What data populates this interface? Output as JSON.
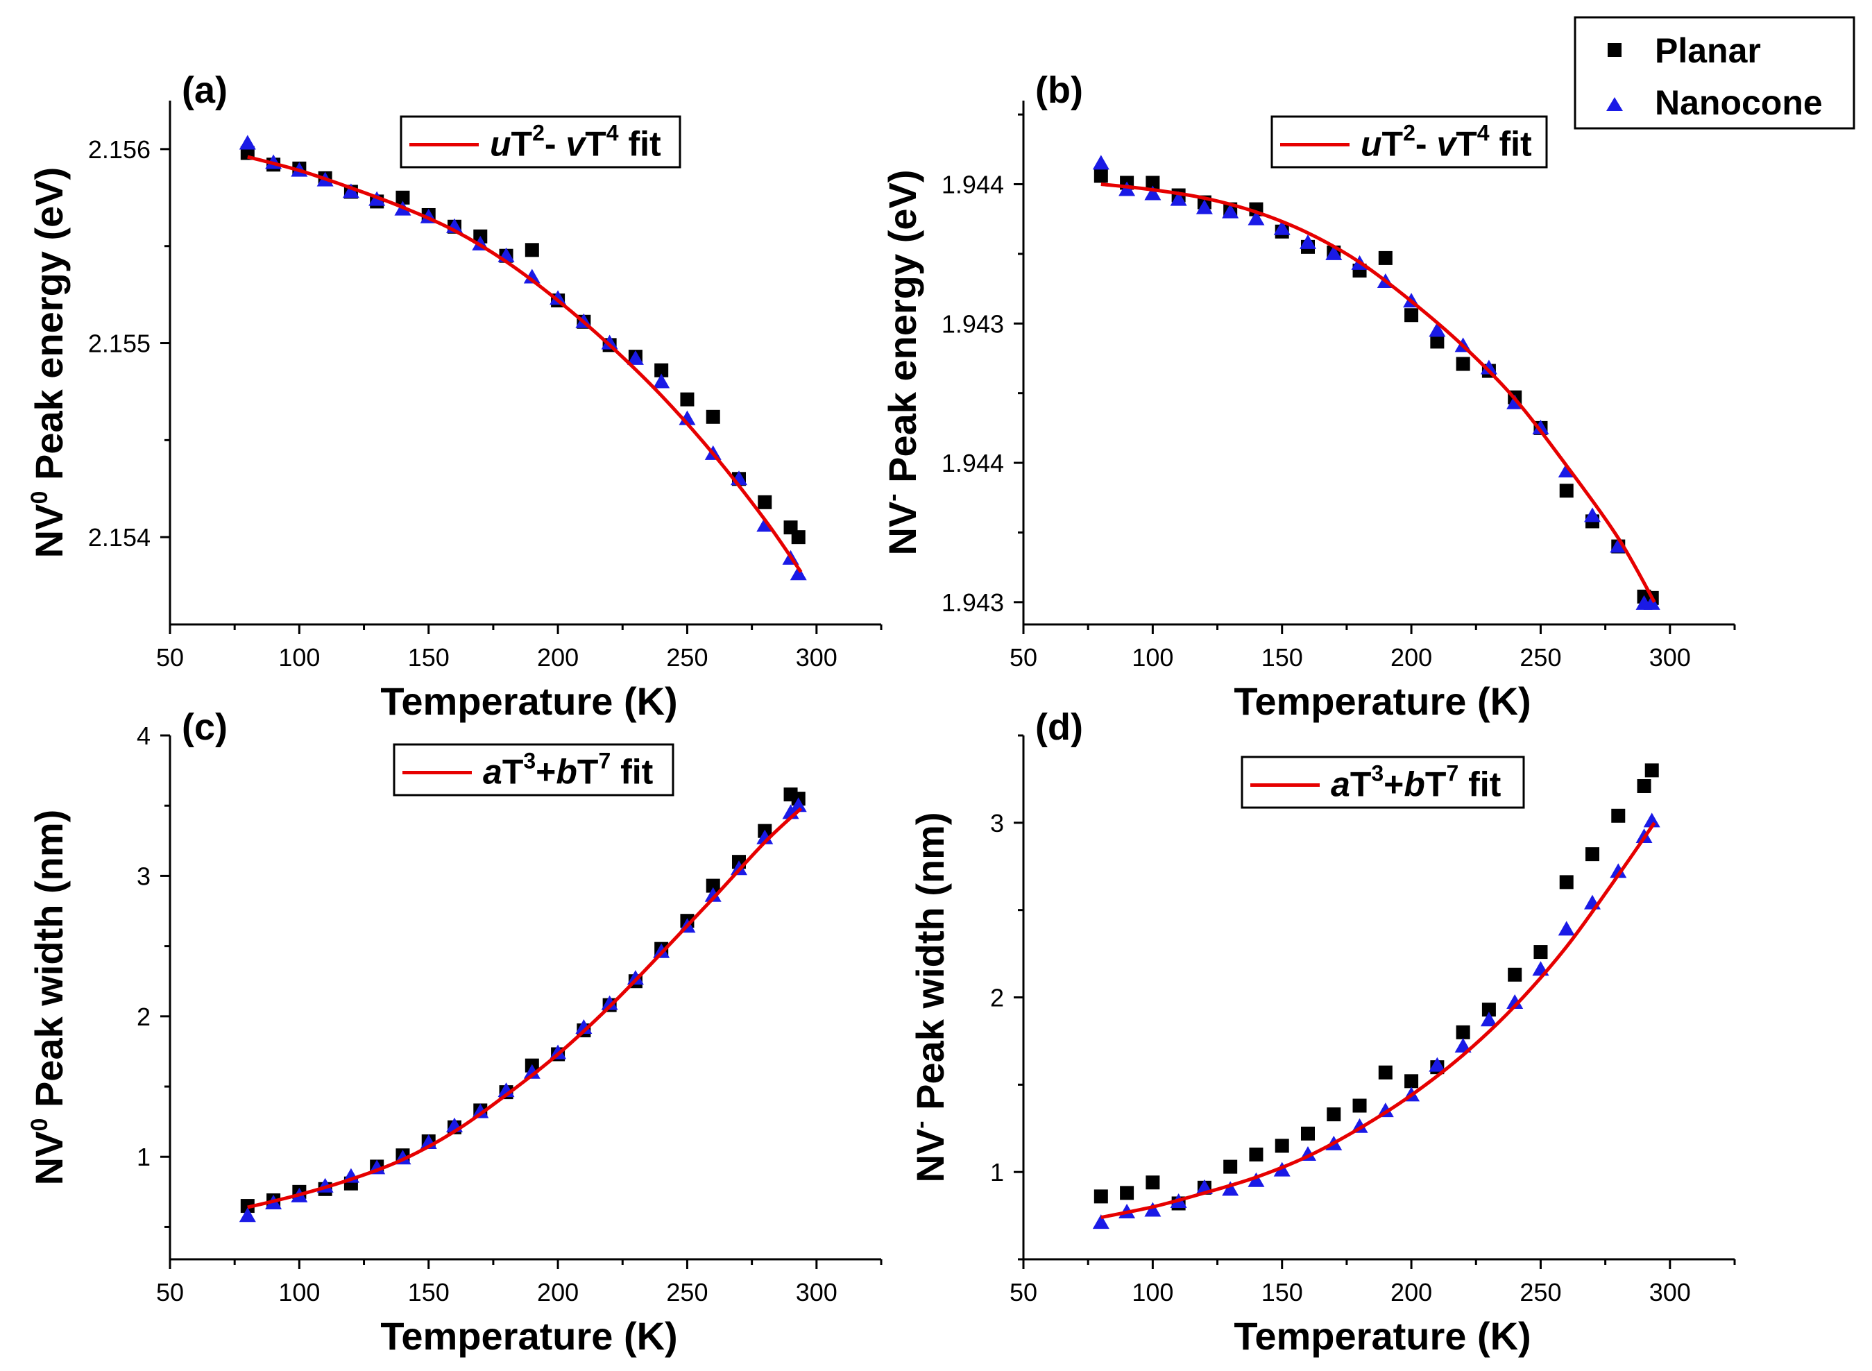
{
  "legend": {
    "planar_label": "Planar",
    "nanocone_label": "Nanocone",
    "planar_color": "#000000",
    "nanocone_color": "#1a1ae6"
  },
  "fit_color": "#e60000",
  "chart_data": [
    {
      "id": "a",
      "type": "scatter",
      "panel_label": "(a)",
      "xlabel": "Temperature (K)",
      "ylabel": "NV⁰ Peak energy (eV)",
      "ylabel_parts": {
        "base": "NV",
        "sup": "0",
        "rest": " Peak energy (eV)"
      },
      "xlim": [
        50,
        325
      ],
      "ylim": [
        2.15355,
        2.15625
      ],
      "xticks": [
        50,
        100,
        150,
        200,
        250,
        300
      ],
      "yticks": [
        2.154,
        2.155,
        2.156
      ],
      "ytick_labels": [
        "2.154",
        "2.155",
        "2.156"
      ],
      "fit_label": {
        "a": "u",
        "t1": "T",
        "s1": "2",
        "op": "- ",
        "b": "v",
        "t2": "T",
        "s2": "4",
        "tail": " fit"
      },
      "fit_label_text": "uT² - vT⁴ fit",
      "series": [
        {
          "name": "Planar",
          "x": [
            80,
            90,
            100,
            110,
            120,
            130,
            140,
            150,
            160,
            170,
            180,
            190,
            200,
            210,
            220,
            230,
            240,
            250,
            260,
            270,
            280,
            290,
            293
          ],
          "y": [
            2.15598,
            2.15592,
            2.1559,
            2.15585,
            2.15578,
            2.15573,
            2.15575,
            2.15566,
            2.1556,
            2.15555,
            2.15545,
            2.15548,
            2.15522,
            2.15511,
            2.15499,
            2.15493,
            2.15486,
            2.15471,
            2.15462,
            2.1543,
            2.15418,
            2.15405,
            2.154
          ]
        },
        {
          "name": "Nanocone",
          "x": [
            80,
            90,
            100,
            110,
            120,
            130,
            140,
            150,
            160,
            170,
            180,
            190,
            200,
            210,
            220,
            230,
            240,
            250,
            260,
            270,
            280,
            290,
            293
          ],
          "y": [
            2.15603,
            2.15593,
            2.15589,
            2.15584,
            2.15578,
            2.15574,
            2.15569,
            2.15565,
            2.1556,
            2.15551,
            2.15545,
            2.15534,
            2.15523,
            2.15511,
            2.155,
            2.15492,
            2.1548,
            2.15461,
            2.15443,
            2.1543,
            2.15406,
            2.15389,
            2.15381
          ]
        }
      ],
      "fit": {
        "x": [
          80,
          100,
          120,
          140,
          160,
          180,
          200,
          220,
          240,
          260,
          280,
          294
        ],
        "y": [
          2.15596,
          2.15589,
          2.1558,
          2.1557,
          2.15558,
          2.15542,
          2.15522,
          2.15499,
          2.15473,
          2.15443,
          2.15409,
          2.15382
        ]
      }
    },
    {
      "id": "b",
      "type": "scatter",
      "panel_label": "(b)",
      "xlabel": "Temperature (K)",
      "ylabel": "NV⁻ Peak energy (eV)",
      "ylabel_parts": {
        "base": "NV",
        "sup": "-",
        "rest": " Peak energy (eV)"
      },
      "xlim": [
        50,
        325
      ],
      "ylim": [
        -0.16,
        3.6
      ],
      "xticks": [
        50,
        100,
        150,
        200,
        250,
        300
      ],
      "yticks": [
        0,
        1,
        2,
        3
      ],
      "ytick_labels": [
        "1.943",
        "1.944",
        "1.943",
        "1.944"
      ],
      "fit_label": {
        "a": "u",
        "t1": "T",
        "s1": "2",
        "op": "- ",
        "b": "v",
        "t2": "T",
        "s2": "4",
        "tail": " fit"
      },
      "fit_label_text": "uT² - vT⁴ fit",
      "series": [
        {
          "name": "Planar",
          "x": [
            80,
            90,
            100,
            110,
            120,
            130,
            140,
            150,
            160,
            170,
            180,
            190,
            200,
            210,
            220,
            230,
            240,
            250,
            260,
            270,
            280,
            290,
            293
          ],
          "y": [
            3.06,
            3.01,
            3.01,
            2.92,
            2.87,
            2.82,
            2.82,
            2.66,
            2.55,
            2.51,
            2.38,
            2.47,
            2.06,
            1.87,
            1.71,
            1.66,
            1.47,
            1.25,
            0.8,
            0.58,
            0.4,
            0.04,
            0.03
          ]
        },
        {
          "name": "Nanocone",
          "x": [
            80,
            90,
            100,
            110,
            120,
            130,
            140,
            150,
            160,
            170,
            180,
            190,
            200,
            210,
            220,
            230,
            240,
            250,
            260,
            270,
            280,
            290,
            293
          ],
          "y": [
            3.15,
            2.96,
            2.93,
            2.89,
            2.83,
            2.8,
            2.75,
            2.68,
            2.58,
            2.5,
            2.43,
            2.3,
            2.16,
            1.95,
            1.84,
            1.68,
            1.43,
            1.25,
            0.94,
            0.62,
            0.4,
            -0.01,
            -0.01
          ]
        }
      ],
      "fit": {
        "x": [
          80,
          100,
          120,
          140,
          160,
          180,
          200,
          220,
          240,
          260,
          280,
          294
        ],
        "y": [
          3.0,
          2.96,
          2.9,
          2.8,
          2.65,
          2.44,
          2.16,
          1.84,
          1.46,
          0.98,
          0.46,
          0.0
        ]
      }
    },
    {
      "id": "c",
      "type": "scatter",
      "panel_label": "(c)",
      "xlabel": "Temperature (K)",
      "ylabel": "NV⁰ Peak width (nm)",
      "ylabel_parts": {
        "base": "NV",
        "sup": "0",
        "rest": " Peak width (nm)"
      },
      "xlim": [
        50,
        325
      ],
      "ylim": [
        0.27,
        4.0
      ],
      "xticks": [
        50,
        100,
        150,
        200,
        250,
        300
      ],
      "yticks": [
        1,
        2,
        3,
        4
      ],
      "ytick_labels": [
        "1",
        "2",
        "3",
        "4"
      ],
      "fit_label": {
        "a": "a",
        "t1": "T",
        "s1": "3",
        "op": "+",
        "b": "b",
        "t2": "T",
        "s2": "7",
        "tail": " fit"
      },
      "fit_label_text": "aT³+bT⁷ fit",
      "series": [
        {
          "name": "Planar",
          "x": [
            80,
            90,
            100,
            110,
            120,
            130,
            140,
            150,
            160,
            170,
            180,
            190,
            200,
            210,
            220,
            230,
            240,
            250,
            260,
            270,
            280,
            290,
            293
          ],
          "y": [
            0.65,
            0.69,
            0.75,
            0.77,
            0.81,
            0.93,
            1.01,
            1.11,
            1.21,
            1.33,
            1.46,
            1.65,
            1.73,
            1.9,
            2.08,
            2.25,
            2.48,
            2.68,
            2.93,
            3.1,
            3.32,
            3.58,
            3.55
          ]
        },
        {
          "name": "Nanocone",
          "x": [
            80,
            90,
            100,
            110,
            120,
            130,
            140,
            150,
            160,
            170,
            180,
            190,
            200,
            210,
            220,
            230,
            240,
            250,
            260,
            270,
            280,
            290,
            293
          ],
          "y": [
            0.58,
            0.67,
            0.72,
            0.79,
            0.86,
            0.92,
            0.99,
            1.1,
            1.22,
            1.32,
            1.47,
            1.6,
            1.74,
            1.92,
            2.09,
            2.27,
            2.46,
            2.64,
            2.86,
            3.05,
            3.27,
            3.45,
            3.5
          ]
        }
      ],
      "fit": {
        "x": [
          80,
          100,
          120,
          140,
          160,
          180,
          200,
          220,
          240,
          260,
          280,
          294
        ],
        "y": [
          0.64,
          0.73,
          0.84,
          0.98,
          1.18,
          1.44,
          1.73,
          2.07,
          2.45,
          2.84,
          3.24,
          3.48
        ]
      }
    },
    {
      "id": "d",
      "type": "scatter",
      "panel_label": "(d)",
      "xlabel": "Temperature (K)",
      "ylabel": "NV⁻ Peak width (nm)",
      "ylabel_parts": {
        "base": "NV",
        "sup": "-",
        "rest": " Peak width (nm)"
      },
      "xlim": [
        50,
        325
      ],
      "ylim": [
        0.5,
        3.5
      ],
      "xticks": [
        50,
        100,
        150,
        200,
        250,
        300
      ],
      "yticks": [
        1,
        2,
        3
      ],
      "ytick_labels": [
        "1",
        "2",
        "3"
      ],
      "fit_label": {
        "a": "a",
        "t1": "T",
        "s1": "3",
        "op": "+",
        "b": "b",
        "t2": "T",
        "s2": "7",
        "tail": " fit"
      },
      "fit_label_text": "aT³+bT⁷ fit",
      "series": [
        {
          "name": "Planar",
          "x": [
            80,
            90,
            100,
            110,
            120,
            130,
            140,
            150,
            160,
            170,
            180,
            190,
            200,
            210,
            220,
            230,
            240,
            250,
            260,
            270,
            280,
            290,
            293
          ],
          "y": [
            0.86,
            0.88,
            0.94,
            0.82,
            0.91,
            1.03,
            1.1,
            1.15,
            1.22,
            1.33,
            1.38,
            1.57,
            1.52,
            1.6,
            1.8,
            1.93,
            2.13,
            2.26,
            2.66,
            2.82,
            3.04,
            3.21,
            3.3
          ]
        },
        {
          "name": "Nanocone",
          "x": [
            80,
            90,
            100,
            110,
            120,
            130,
            140,
            150,
            160,
            170,
            180,
            190,
            200,
            210,
            220,
            230,
            240,
            250,
            260,
            270,
            280,
            290,
            293
          ],
          "y": [
            0.71,
            0.77,
            0.78,
            0.83,
            0.91,
            0.9,
            0.95,
            1.01,
            1.1,
            1.16,
            1.26,
            1.35,
            1.44,
            1.61,
            1.72,
            1.87,
            1.97,
            2.16,
            2.39,
            2.54,
            2.72,
            2.92,
            3.01
          ]
        }
      ],
      "fit": {
        "x": [
          80,
          100,
          120,
          140,
          160,
          180,
          200,
          220,
          240,
          260,
          280,
          294
        ],
        "y": [
          0.74,
          0.8,
          0.88,
          0.97,
          1.09,
          1.25,
          1.44,
          1.67,
          1.95,
          2.29,
          2.7,
          3.0
        ]
      }
    }
  ]
}
